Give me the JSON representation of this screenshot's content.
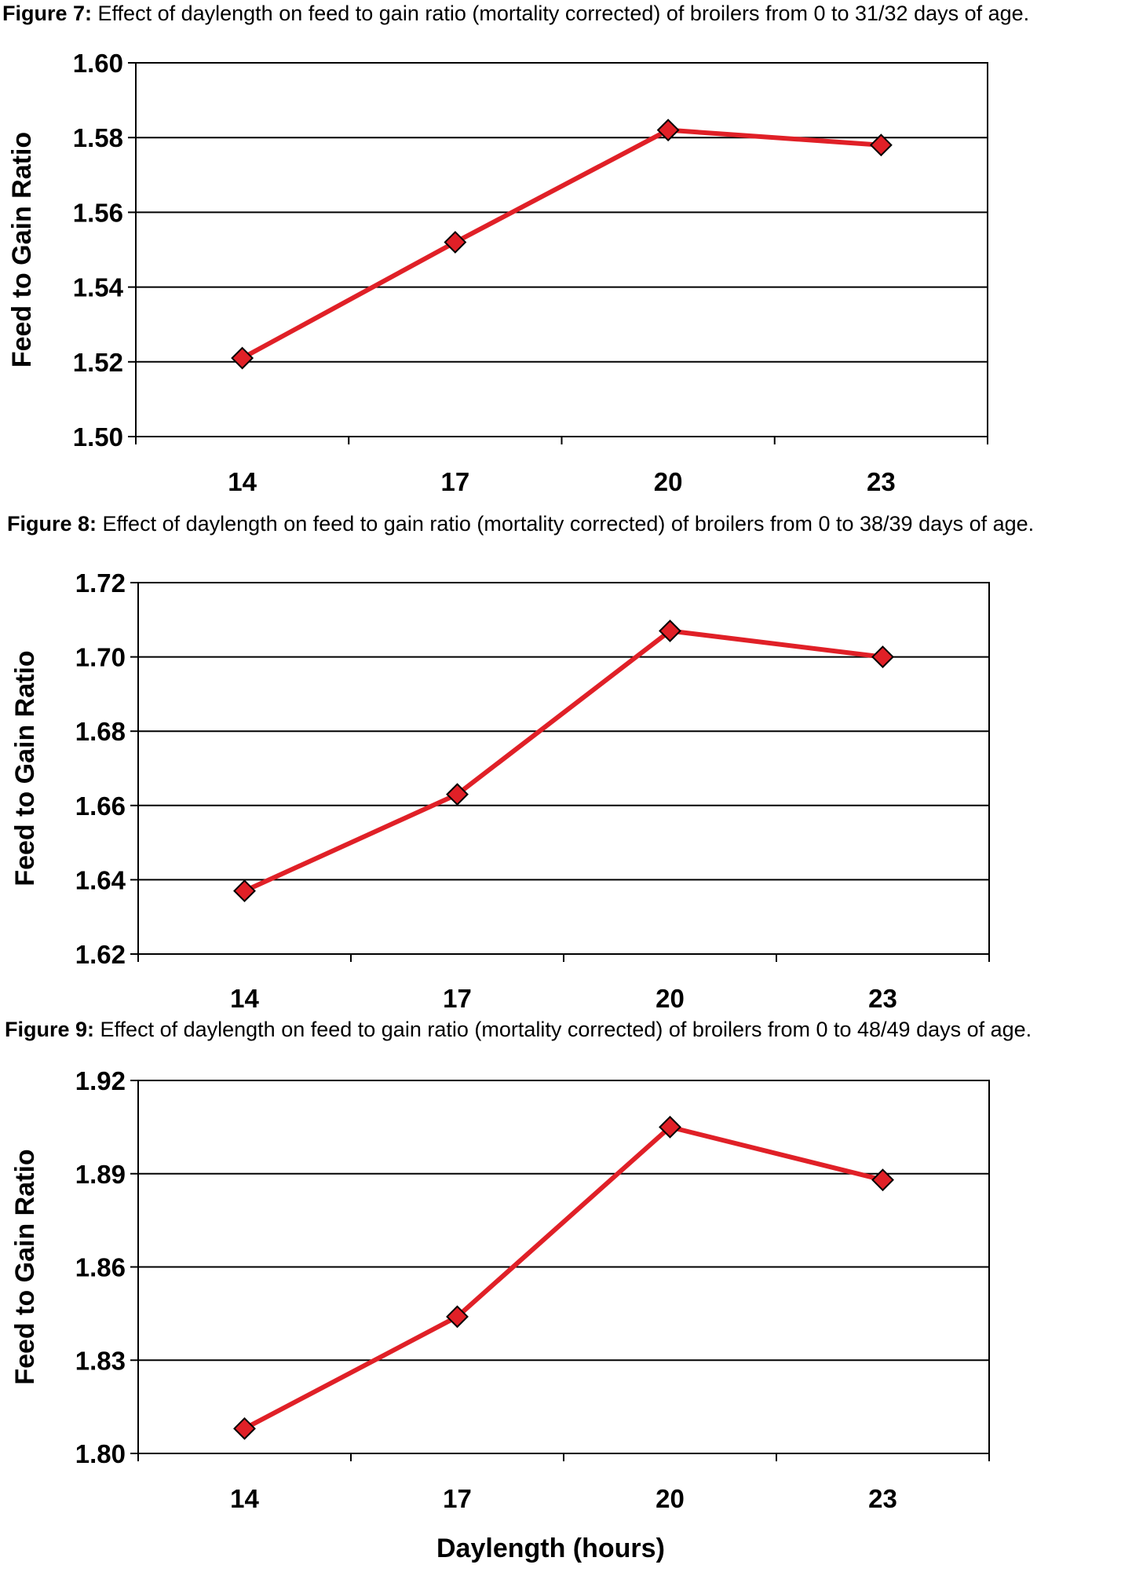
{
  "chart_data": [
    {
      "type": "line",
      "title_prefix": "Figure 7:",
      "title": "Effect of daylength on feed to gain ratio (mortality corrected) of broilers from 0 to 31/32 days of age.",
      "xlabel": "",
      "ylabel": "Feed to Gain Ratio",
      "categories": [
        "14",
        "17",
        "20",
        "23"
      ],
      "ylim": [
        1.5,
        1.6
      ],
      "yticks": [
        "1.50",
        "1.52",
        "1.54",
        "1.56",
        "1.58",
        "1.60"
      ],
      "series": [
        {
          "values": [
            1.521,
            1.552,
            1.582,
            1.578
          ]
        }
      ],
      "grid": true
    },
    {
      "type": "line",
      "title_prefix": "Figure 8:",
      "title": "Effect of daylength on feed to gain ratio (mortality corrected) of broilers from 0 to 38/39 days of age.",
      "xlabel": "",
      "ylabel": "Feed to Gain Ratio",
      "categories": [
        "14",
        "17",
        "20",
        "23"
      ],
      "ylim": [
        1.62,
        1.72
      ],
      "yticks": [
        "1.62",
        "1.64",
        "1.66",
        "1.68",
        "1.70",
        "1.72"
      ],
      "series": [
        {
          "values": [
            1.637,
            1.663,
            1.707,
            1.7
          ]
        }
      ],
      "grid": true
    },
    {
      "type": "line",
      "title_prefix": "Figure 9:",
      "title": "Effect of daylength on feed to gain ratio (mortality corrected) of broilers from 0 to 48/49 days of age.",
      "xlabel": "Daylength (hours)",
      "ylabel": "Feed to Gain Ratio",
      "categories": [
        "14",
        "17",
        "20",
        "23"
      ],
      "ylim": [
        1.8,
        1.92
      ],
      "yticks": [
        "1.80",
        "1.83",
        "1.86",
        "1.89",
        "1.92"
      ],
      "series": [
        {
          "values": [
            1.808,
            1.844,
            1.905,
            1.888
          ]
        }
      ],
      "grid": true
    }
  ],
  "colors": {
    "line": "#e02027",
    "marker_fill": "#e02027",
    "marker_stroke": "#000000",
    "grid": "#000000"
  }
}
